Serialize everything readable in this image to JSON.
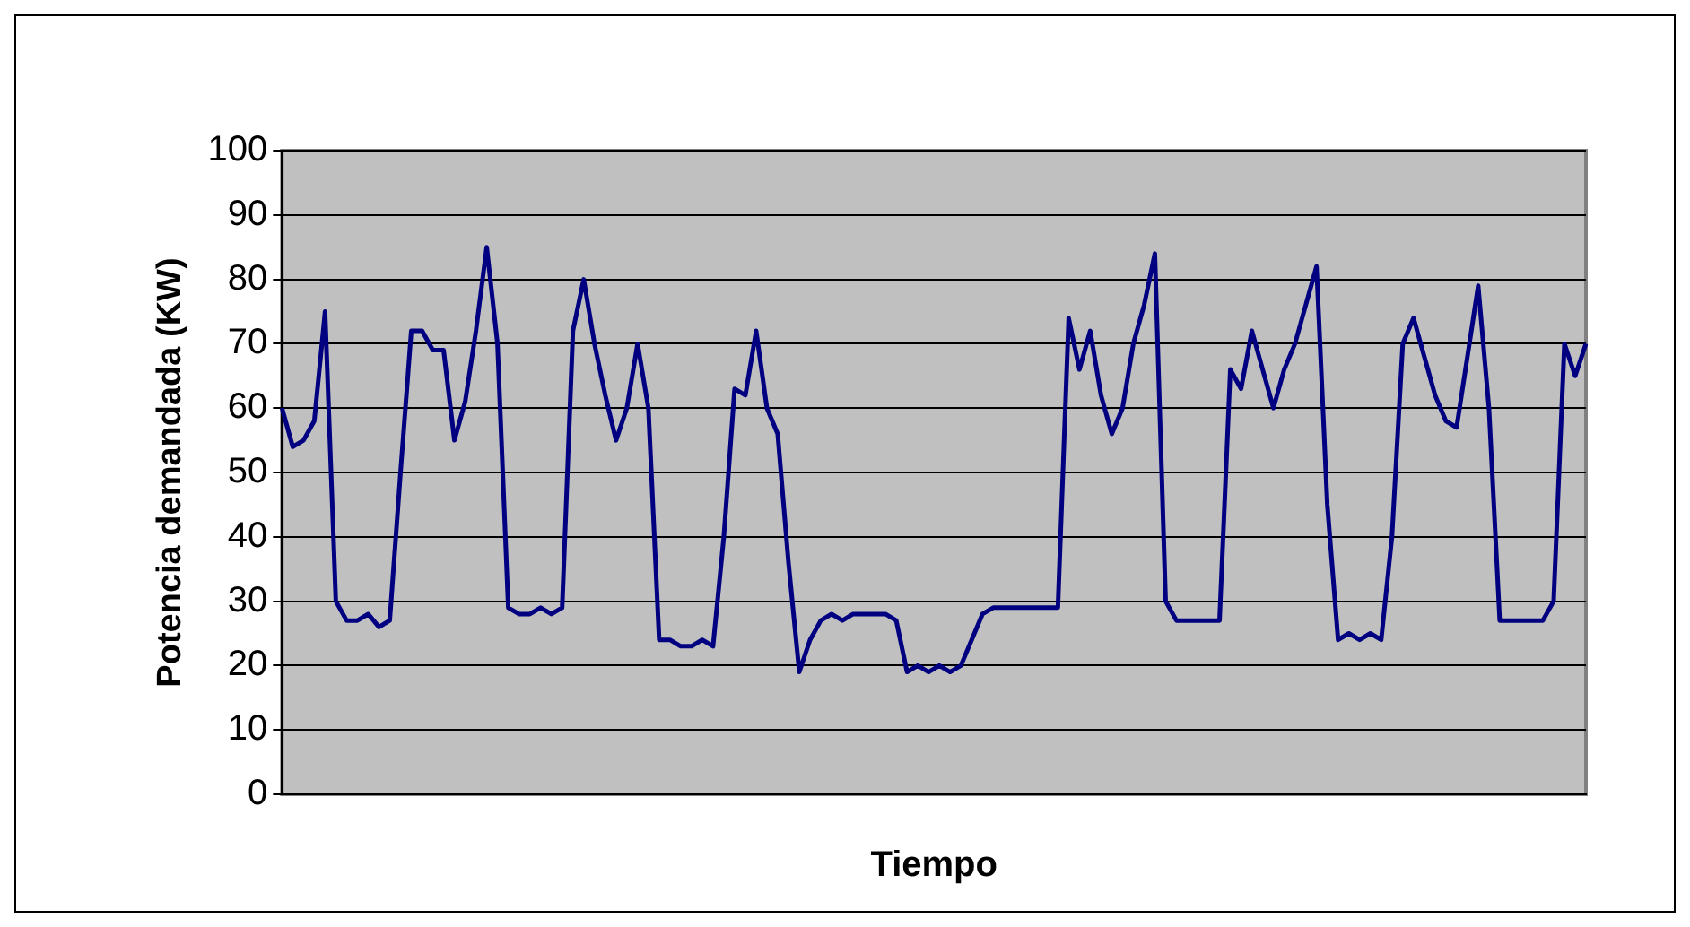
{
  "chart_data": {
    "type": "line",
    "xlabel": "Tiempo",
    "ylabel": "Potencia demandada (KW)",
    "categories": [
      null,
      null,
      null,
      null,
      null,
      null,
      null,
      null,
      null,
      null,
      null,
      null,
      null,
      null,
      null,
      null,
      null,
      null,
      null,
      null,
      null,
      null,
      null,
      null,
      null,
      null,
      null,
      null,
      null,
      null,
      null,
      null,
      null,
      null,
      null,
      null,
      null,
      null,
      null,
      null,
      null,
      null,
      null,
      null,
      null,
      null,
      null,
      null,
      null,
      null,
      null,
      null,
      null,
      null,
      null,
      null,
      null,
      null,
      null,
      null,
      null,
      null,
      null,
      null,
      null,
      null,
      null,
      null,
      null,
      null,
      null,
      null,
      null,
      null,
      null,
      null,
      null,
      null,
      null,
      null,
      null,
      null,
      null,
      null,
      null,
      null,
      null,
      null,
      null,
      null,
      null,
      null,
      null,
      null,
      null,
      null,
      null,
      null,
      null,
      null,
      null,
      null,
      null,
      null,
      null,
      null,
      null,
      null,
      null,
      null,
      null,
      null,
      null,
      null,
      null,
      null,
      null,
      null,
      null,
      null,
      null,
      null
    ],
    "series": [
      {
        "color": "#000080",
        "values": [
          60,
          54,
          55,
          58,
          75,
          30,
          27,
          27,
          28,
          26,
          27,
          50,
          72,
          72,
          69,
          69,
          55,
          61,
          72,
          85,
          70,
          29,
          28,
          28,
          29,
          28,
          29,
          72,
          80,
          70,
          62,
          55,
          60,
          70,
          60,
          24,
          24,
          23,
          23,
          24,
          23,
          40,
          63,
          62,
          72,
          60,
          56,
          36,
          19,
          24,
          27,
          28,
          27,
          28,
          28,
          28,
          28,
          27,
          19,
          20,
          19,
          20,
          19,
          20,
          24,
          28,
          29,
          29,
          29,
          29,
          29,
          29,
          29,
          74,
          66,
          72,
          62,
          56,
          60,
          70,
          76,
          84,
          30,
          27,
          27,
          27,
          27,
          27,
          66,
          63,
          72,
          66,
          60,
          66,
          70,
          76,
          82,
          45,
          24,
          25,
          24,
          25,
          24,
          40,
          70,
          74,
          68,
          62,
          58,
          57,
          68,
          79,
          60,
          27,
          27,
          27,
          27,
          27,
          30,
          70,
          65,
          70
        ]
      }
    ],
    "ylim": [
      0,
      100
    ],
    "yticks": [
      0,
      10,
      20,
      30,
      40,
      50,
      60,
      70,
      80,
      90,
      100
    ],
    "grid": "y",
    "legend": false,
    "tick_labels": "y",
    "marker": "none",
    "line_style": "solid"
  }
}
